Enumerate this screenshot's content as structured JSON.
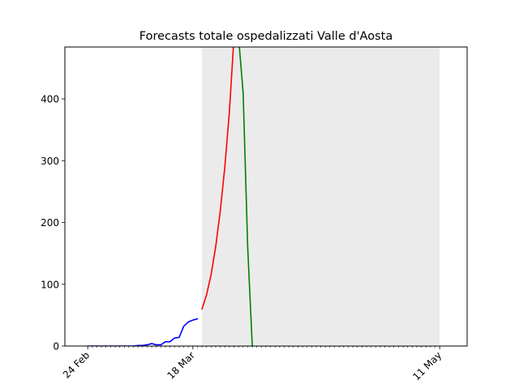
{
  "chart_data": {
    "type": "line",
    "title": "Forecasts totale ospedalizzati Valle d'Aosta",
    "xlabel": "",
    "ylabel": "",
    "x_axis": {
      "type": "date",
      "range": [
        "2020-02-19",
        "2020-05-17"
      ],
      "major_ticks": [
        {
          "date": "2020-02-24",
          "label": "24 Feb"
        },
        {
          "date": "2020-03-18",
          "label": "18 Mar"
        },
        {
          "date": "2020-05-11",
          "label": "11 May"
        }
      ],
      "minor_tick_step_days": 1
    },
    "y_axis": {
      "range": [
        0,
        484
      ],
      "ticks": [
        0,
        100,
        200,
        300,
        400
      ]
    },
    "grid": false,
    "legend": "none",
    "shaded_region": {
      "start": "2020-03-20",
      "end": "2020-05-11",
      "color": "#ebebeb"
    },
    "series": [
      {
        "color": "#0000ff",
        "points": [
          {
            "x": "2020-02-24",
            "y": 0
          },
          {
            "x": "2020-02-25",
            "y": 0
          },
          {
            "x": "2020-02-26",
            "y": 0
          },
          {
            "x": "2020-02-27",
            "y": 0
          },
          {
            "x": "2020-02-28",
            "y": 0
          },
          {
            "x": "2020-02-29",
            "y": 0
          },
          {
            "x": "2020-03-01",
            "y": 0
          },
          {
            "x": "2020-03-02",
            "y": 0
          },
          {
            "x": "2020-03-03",
            "y": 0
          },
          {
            "x": "2020-03-04",
            "y": 0
          },
          {
            "x": "2020-03-05",
            "y": 0
          },
          {
            "x": "2020-03-06",
            "y": 1
          },
          {
            "x": "2020-03-07",
            "y": 1
          },
          {
            "x": "2020-03-08",
            "y": 2
          },
          {
            "x": "2020-03-09",
            "y": 4
          },
          {
            "x": "2020-03-10",
            "y": 2
          },
          {
            "x": "2020-03-11",
            "y": 2
          },
          {
            "x": "2020-03-12",
            "y": 7
          },
          {
            "x": "2020-03-13",
            "y": 7
          },
          {
            "x": "2020-03-14",
            "y": 13
          },
          {
            "x": "2020-03-15",
            "y": 14
          },
          {
            "x": "2020-03-16",
            "y": 32
          },
          {
            "x": "2020-03-17",
            "y": 39
          },
          {
            "x": "2020-03-18",
            "y": 42
          },
          {
            "x": "2020-03-19",
            "y": 44
          }
        ]
      },
      {
        "color": "#ff0000",
        "points": [
          {
            "x": "2020-03-20",
            "y": 60
          },
          {
            "x": "2020-03-21",
            "y": 83
          },
          {
            "x": "2020-03-22",
            "y": 116
          },
          {
            "x": "2020-03-23",
            "y": 161
          },
          {
            "x": "2020-03-24",
            "y": 219
          },
          {
            "x": "2020-03-25",
            "y": 290
          },
          {
            "x": "2020-03-26",
            "y": 380
          },
          {
            "x": "2020-03-27",
            "y": 500
          }
        ]
      },
      {
        "color": "#008000",
        "points": [
          {
            "x": "2020-03-28",
            "y": 500
          },
          {
            "x": "2020-03-29",
            "y": 410
          },
          {
            "x": "2020-03-30",
            "y": 160
          },
          {
            "x": "2020-03-31",
            "y": 0
          }
        ]
      }
    ]
  }
}
